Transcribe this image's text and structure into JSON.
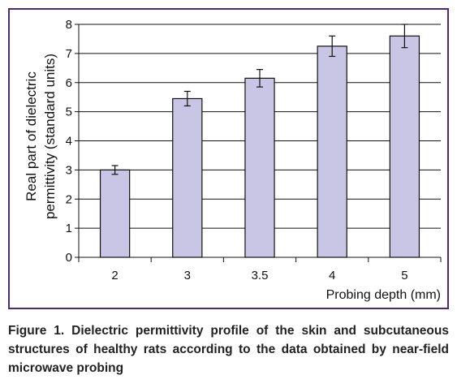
{
  "chart_data": {
    "type": "bar",
    "categories": [
      "2",
      "3",
      "3.5",
      "4",
      "5"
    ],
    "values": [
      3.0,
      5.45,
      6.15,
      7.25,
      7.6
    ],
    "errors": [
      0.15,
      0.25,
      0.3,
      0.35,
      0.4
    ],
    "ylabel_line1": "Real part of dielectric",
    "ylabel_line2": "permittivity (standard units)",
    "xlabel": "Probing depth (mm)",
    "ylim": [
      0,
      8
    ],
    "yticks": [
      0,
      1,
      2,
      3,
      4,
      5,
      6,
      7,
      8
    ],
    "grid": true,
    "bar_color": "#c9c5e4",
    "bar_edge_color": "#111111",
    "frame_color": "#4d2a73"
  },
  "caption": "Figure 1. Dielectric permittivity profile of the skin and subcutaneous structures of healthy rats according to the data obtained by near-field microwave probing"
}
